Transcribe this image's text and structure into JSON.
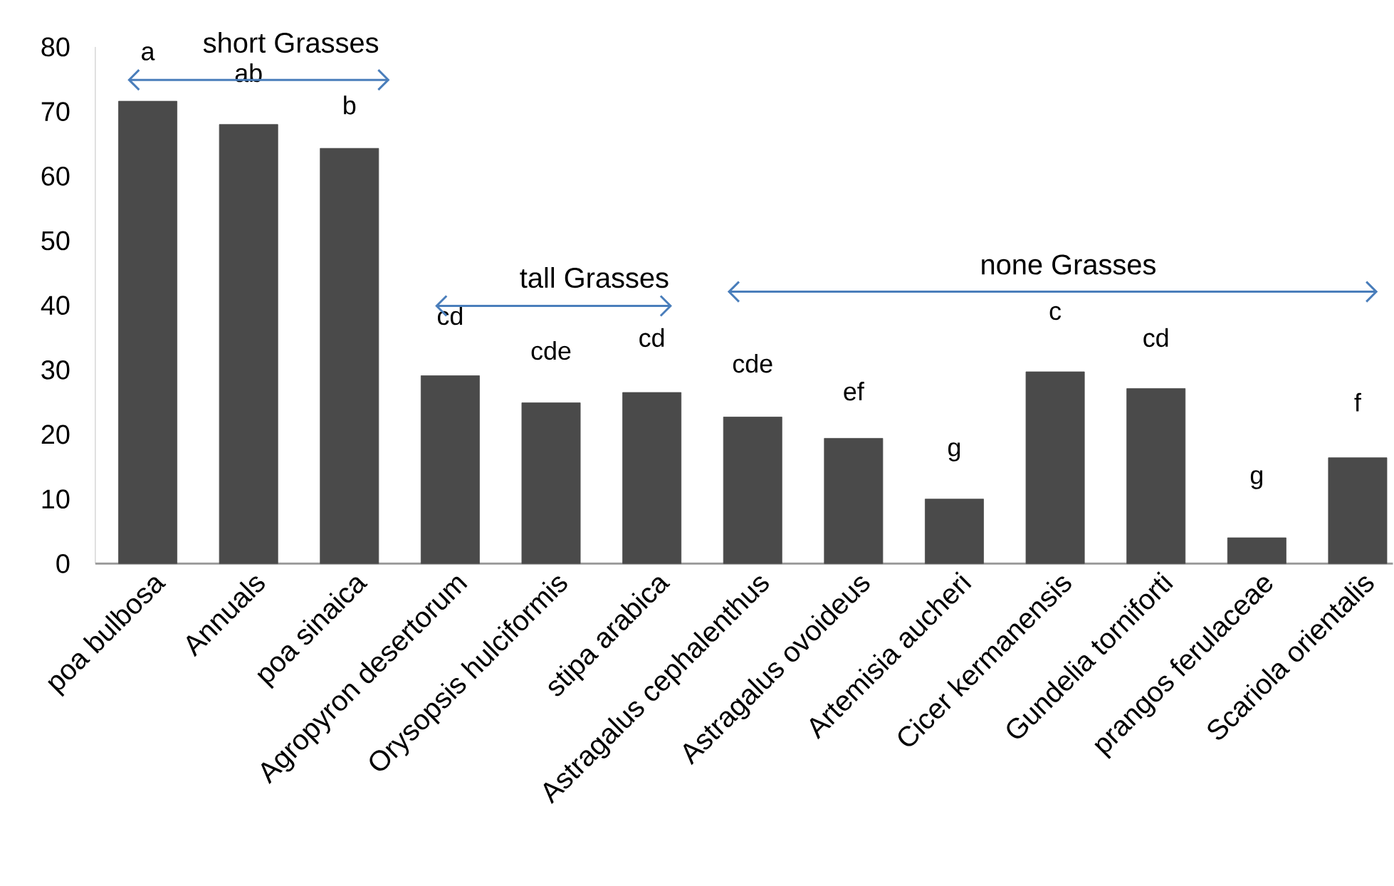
{
  "chart_data": {
    "type": "bar",
    "categories": [
      "poa bulbosa",
      "Annuals",
      "poa sinaica",
      "Agropyron desertorum",
      "Orysopsis hulciformis",
      "stipa arabica",
      "Astragalus cephalenthus",
      "Astragalus  ovoideus",
      "Artemisia aucheri",
      "Cicer kermanensis",
      "Gundelia torniforti",
      "prangos ferulaceae",
      "Scariola orientalis"
    ],
    "values": [
      71.6,
      68,
      64.3,
      29.1,
      24.9,
      26.5,
      22.7,
      19.4,
      10,
      29.7,
      27.1,
      4,
      16.4
    ],
    "color": "#4a4a4a",
    "ylim": [
      0,
      80
    ],
    "yticks": [
      0,
      10,
      20,
      30,
      40,
      50,
      60,
      70,
      80
    ],
    "annotations": [
      "a",
      "ab",
      "b",
      "cd",
      "cde",
      "cd",
      "cde",
      "ef",
      "g",
      "c",
      "cd",
      "g",
      "f",
      "short Grasses",
      "tall Grasses",
      "none Grasses"
    ]
  }
}
